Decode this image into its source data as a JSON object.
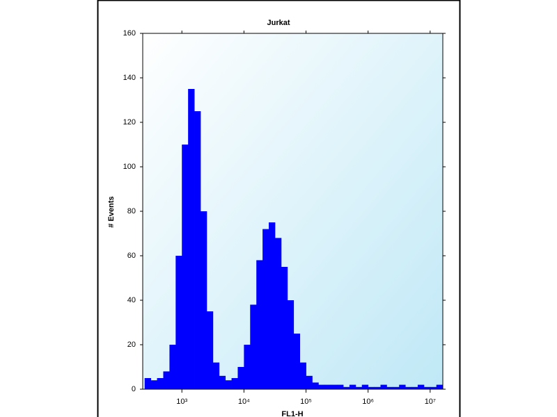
{
  "chart_data": {
    "type": "histogram",
    "title": "Jurkat",
    "x_label": "FL1-H",
    "y_label": "# Events",
    "x_log": true,
    "color": "#0000ff",
    "bins": [
      251,
      316,
      398,
      501,
      631,
      794,
      1000,
      1259,
      1585,
      1995,
      2512,
      3162,
      3981,
      5012,
      6310,
      7943,
      10000,
      12589,
      15849,
      19953,
      25119,
      31623,
      39811,
      50119,
      63096,
      79433,
      100000,
      125893,
      158489,
      199526,
      251189,
      316228,
      398107,
      501187,
      630957,
      794328,
      1000000,
      1258925,
      1584893,
      1995262,
      2511886,
      3162278,
      3981072,
      5011872,
      6309573,
      7943282,
      10000000,
      12589254,
      15848932
    ],
    "values": [
      5,
      4,
      5,
      8,
      20,
      60,
      110,
      135,
      125,
      80,
      35,
      12,
      6,
      4,
      5,
      10,
      20,
      38,
      58,
      72,
      75,
      68,
      55,
      40,
      25,
      12,
      6,
      3,
      2,
      2,
      2,
      2,
      1,
      2,
      1,
      2,
      1,
      1,
      2,
      1,
      1,
      2,
      1,
      1,
      2,
      1,
      1,
      2
    ],
    "xlim": [
      234,
      16000000
    ],
    "xticks": [
      {
        "value": 1000,
        "label": "10³"
      },
      {
        "value": 10000,
        "label": "10⁴"
      },
      {
        "value": 100000,
        "label": "10⁵"
      },
      {
        "value": 1000000,
        "label": "10⁶"
      },
      {
        "value": 10000000,
        "label": "10⁷"
      }
    ],
    "ylim": [
      0,
      160
    ],
    "yticks": [
      0,
      20,
      40,
      60,
      80,
      100,
      120,
      140,
      160
    ]
  }
}
